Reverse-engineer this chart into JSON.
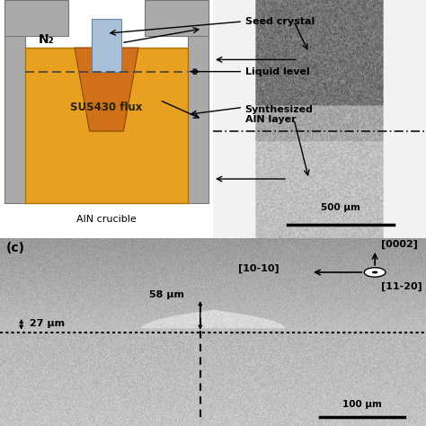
{
  "n2_label": "N₂",
  "seed_crystal_label": "Seed crystal",
  "liquid_level_label": "Liquid level",
  "synthesized_aln_label": "Synthesized\nAlN layer",
  "sus430_label": "SUS430 flux",
  "aln_crucible_label": "AlN crucible",
  "scale_bar_top": "500 μm",
  "scale_bar_bottom": "100 μm",
  "meas_27": "27 μm",
  "meas_58": "58 μm",
  "crystal_dir_0002": "[0002]",
  "crystal_dir_1010": "[10-10]",
  "crystal_dir_1120": "[11-20]",
  "bottom_label": "(c)",
  "crucible_color": "#e8a020",
  "seed_color": "#a8c0d8",
  "wall_color": "#aaaaaa",
  "aln_cone_color": "#d07018",
  "bg_color": "#ffffff",
  "sem_top_dark": "#787878",
  "sem_top_mid": "#b0b0b0",
  "sem_top_light": "#d0d0d0",
  "sem_bot_upper": "#b8b8b8",
  "sem_bot_lower": "#888888"
}
